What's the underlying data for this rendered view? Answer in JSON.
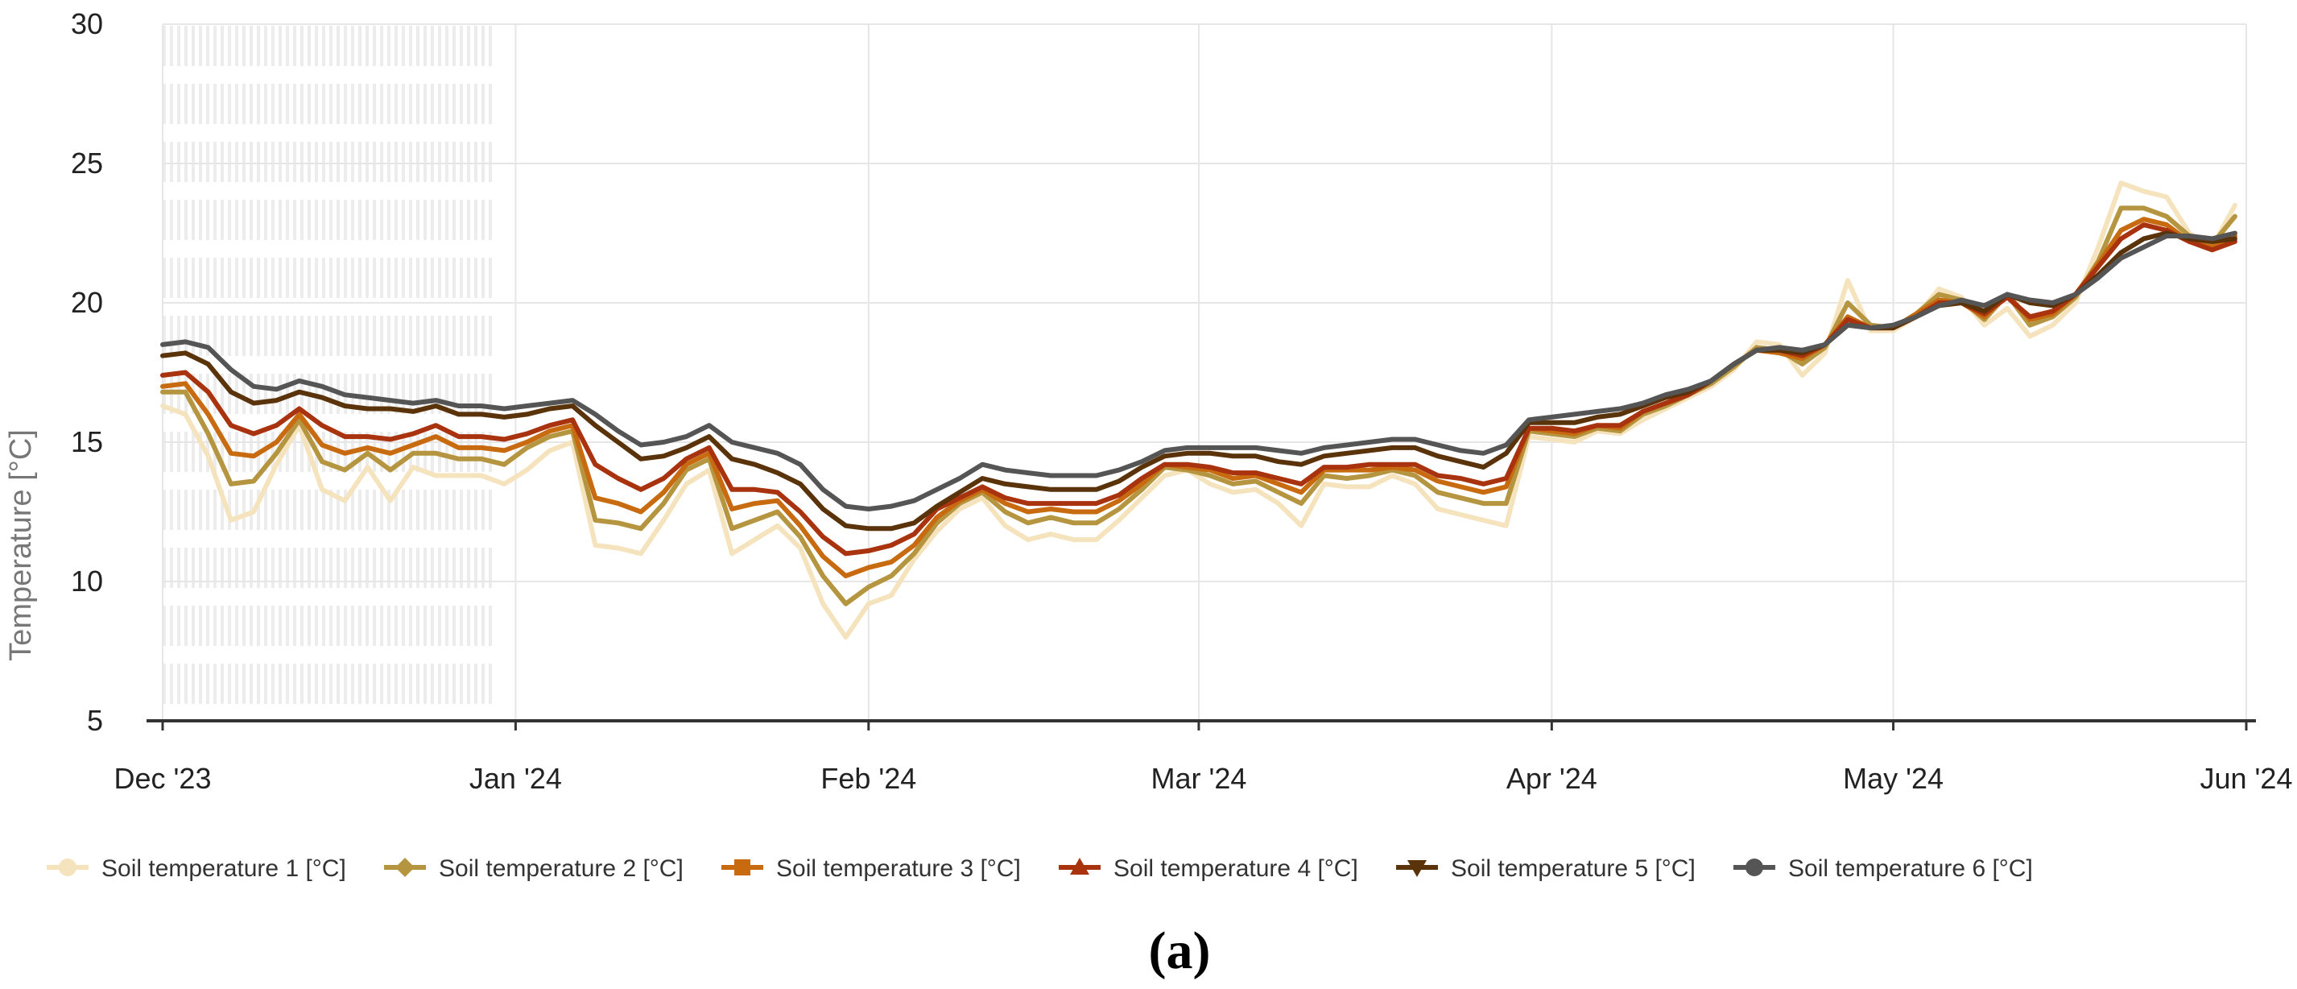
{
  "chart_data": {
    "type": "line",
    "title": "",
    "caption": "(a)",
    "xlabel": "",
    "ylabel": "Temperature [°C]",
    "ylim": [
      5,
      30
    ],
    "yticks": [
      5,
      10,
      15,
      20,
      25,
      30
    ],
    "x_domain_days": [
      0,
      183
    ],
    "xticks": [
      {
        "label": "Dec '23",
        "day": 0
      },
      {
        "label": "Jan '24",
        "day": 31
      },
      {
        "label": "Feb '24",
        "day": 62
      },
      {
        "label": "Mar '24",
        "day": 91
      },
      {
        "label": "Apr '24",
        "day": 122
      },
      {
        "label": "May '24",
        "day": 152
      },
      {
        "label": "Jun '24",
        "day": 183
      }
    ],
    "grid": true,
    "missing_data_band_days": [
      0,
      29
    ],
    "legend_position": "bottom",
    "x_days": [
      0,
      2,
      4,
      6,
      8,
      10,
      12,
      14,
      16,
      18,
      20,
      22,
      24,
      26,
      28,
      30,
      32,
      34,
      36,
      38,
      40,
      42,
      44,
      46,
      48,
      50,
      52,
      54,
      56,
      58,
      60,
      62,
      64,
      66,
      68,
      70,
      72,
      74,
      76,
      78,
      80,
      82,
      84,
      86,
      88,
      90,
      92,
      94,
      96,
      98,
      100,
      102,
      104,
      106,
      108,
      110,
      112,
      114,
      116,
      118,
      120,
      122,
      124,
      126,
      128,
      130,
      132,
      134,
      136,
      138,
      140,
      142,
      144,
      146,
      148,
      150,
      152,
      154,
      156,
      158,
      160,
      162,
      164,
      166,
      168,
      170,
      172,
      174,
      176,
      178,
      180,
      182
    ],
    "series": [
      {
        "name": "Soil temperature 1 [°C]",
        "color": "#f5e3be",
        "marker": "circle",
        "values": [
          16.3,
          16.0,
          14.5,
          12.2,
          12.5,
          14.2,
          15.6,
          13.3,
          12.9,
          14.1,
          12.9,
          14.1,
          13.8,
          13.8,
          13.8,
          13.5,
          14.0,
          14.7,
          15.0,
          11.3,
          11.2,
          11.0,
          12.2,
          13.5,
          14.0,
          11.0,
          11.5,
          12.0,
          11.2,
          9.2,
          8.0,
          9.2,
          9.5,
          10.8,
          11.8,
          12.6,
          13.0,
          12.0,
          11.5,
          11.7,
          11.5,
          11.5,
          12.2,
          13.0,
          13.8,
          14.0,
          13.5,
          13.2,
          13.3,
          12.8,
          12.0,
          13.5,
          13.4,
          13.4,
          13.8,
          13.5,
          12.6,
          12.4,
          12.2,
          12.0,
          15.2,
          15.1,
          15.0,
          15.4,
          15.3,
          15.8,
          16.2,
          16.6,
          17.0,
          17.6,
          18.6,
          18.5,
          17.4,
          18.2,
          20.8,
          19.0,
          19.0,
          19.5,
          20.5,
          20.2,
          19.2,
          19.8,
          18.8,
          19.2,
          20.0,
          22.0,
          24.3,
          24.0,
          23.8,
          22.5,
          22.0,
          23.5
        ]
      },
      {
        "name": "Soil temperature 2 [°C]",
        "color": "#b5953f",
        "marker": "diamond",
        "values": [
          16.8,
          16.8,
          15.3,
          13.5,
          13.6,
          14.6,
          15.8,
          14.3,
          14.0,
          14.6,
          14.0,
          14.6,
          14.6,
          14.4,
          14.4,
          14.2,
          14.8,
          15.2,
          15.4,
          12.2,
          12.1,
          11.9,
          12.8,
          14.0,
          14.4,
          11.9,
          12.2,
          12.5,
          11.6,
          10.2,
          9.2,
          9.8,
          10.2,
          11.0,
          12.1,
          12.8,
          13.2,
          12.5,
          12.1,
          12.3,
          12.1,
          12.1,
          12.6,
          13.3,
          14.1,
          14.0,
          13.8,
          13.5,
          13.6,
          13.2,
          12.8,
          13.8,
          13.7,
          13.8,
          14.0,
          13.8,
          13.2,
          13.0,
          12.8,
          12.8,
          15.4,
          15.3,
          15.2,
          15.5,
          15.4,
          16.0,
          16.3,
          16.7,
          17.1,
          17.7,
          18.4,
          18.3,
          17.8,
          18.4,
          20.0,
          19.2,
          19.1,
          19.6,
          20.3,
          20.1,
          19.4,
          20.3,
          19.2,
          19.5,
          20.2,
          21.5,
          23.4,
          23.4,
          23.1,
          22.4,
          22.1,
          23.1
        ]
      },
      {
        "name": "Soil temperature 3 [°C]",
        "color": "#c76a10",
        "marker": "square",
        "values": [
          17.0,
          17.1,
          16.0,
          14.6,
          14.5,
          15.0,
          16.0,
          14.9,
          14.6,
          14.8,
          14.6,
          14.9,
          15.2,
          14.8,
          14.8,
          14.7,
          15.0,
          15.4,
          15.6,
          13.0,
          12.8,
          12.5,
          13.2,
          14.2,
          14.6,
          12.6,
          12.8,
          12.9,
          12.0,
          10.9,
          10.2,
          10.5,
          10.7,
          11.3,
          12.3,
          12.9,
          13.3,
          12.8,
          12.5,
          12.6,
          12.5,
          12.5,
          12.9,
          13.5,
          14.2,
          14.1,
          14.0,
          13.7,
          13.8,
          13.5,
          13.2,
          14.0,
          14.0,
          14.0,
          14.1,
          14.0,
          13.6,
          13.4,
          13.2,
          13.4,
          15.5,
          15.4,
          15.3,
          15.6,
          15.5,
          16.1,
          16.4,
          16.7,
          17.2,
          17.8,
          18.3,
          18.2,
          18.0,
          18.5,
          19.5,
          19.1,
          19.1,
          19.6,
          20.1,
          20.0,
          19.5,
          20.3,
          19.4,
          19.6,
          20.3,
          21.4,
          22.6,
          23.0,
          22.8,
          22.2,
          22.0,
          22.4
        ]
      },
      {
        "name": "Soil temperature 4 [°C]",
        "color": "#a8330e",
        "marker": "triangle-up",
        "values": [
          17.4,
          17.5,
          16.8,
          15.6,
          15.3,
          15.6,
          16.2,
          15.6,
          15.2,
          15.2,
          15.1,
          15.3,
          15.6,
          15.2,
          15.2,
          15.1,
          15.3,
          15.6,
          15.8,
          14.2,
          13.7,
          13.3,
          13.7,
          14.4,
          14.8,
          13.3,
          13.3,
          13.2,
          12.5,
          11.6,
          11.0,
          11.1,
          11.3,
          11.7,
          12.6,
          13.0,
          13.4,
          13.0,
          12.8,
          12.8,
          12.8,
          12.8,
          13.1,
          13.7,
          14.2,
          14.2,
          14.1,
          13.9,
          13.9,
          13.7,
          13.5,
          14.1,
          14.1,
          14.2,
          14.2,
          14.2,
          13.8,
          13.7,
          13.5,
          13.7,
          15.5,
          15.5,
          15.4,
          15.6,
          15.6,
          16.1,
          16.4,
          16.7,
          17.2,
          17.8,
          18.3,
          18.3,
          18.1,
          18.5,
          19.4,
          19.1,
          19.1,
          19.5,
          20.0,
          20.0,
          19.6,
          20.2,
          19.5,
          19.7,
          20.3,
          21.3,
          22.3,
          22.8,
          22.6,
          22.2,
          21.9,
          22.2
        ]
      },
      {
        "name": "Soil temperature 5 [°C]",
        "color": "#5a330a",
        "marker": "triangle-down",
        "values": [
          18.1,
          18.2,
          17.8,
          16.8,
          16.4,
          16.5,
          16.8,
          16.6,
          16.3,
          16.2,
          16.2,
          16.1,
          16.3,
          16.0,
          16.0,
          15.9,
          16.0,
          16.2,
          16.3,
          15.6,
          15.0,
          14.4,
          14.5,
          14.8,
          15.2,
          14.4,
          14.2,
          13.9,
          13.5,
          12.6,
          12.0,
          11.9,
          11.9,
          12.1,
          12.7,
          13.2,
          13.7,
          13.5,
          13.4,
          13.3,
          13.3,
          13.3,
          13.6,
          14.1,
          14.5,
          14.6,
          14.6,
          14.5,
          14.5,
          14.3,
          14.2,
          14.5,
          14.6,
          14.7,
          14.8,
          14.8,
          14.5,
          14.3,
          14.1,
          14.6,
          15.7,
          15.7,
          15.7,
          15.9,
          16.0,
          16.3,
          16.6,
          16.8,
          17.2,
          17.8,
          18.3,
          18.3,
          18.2,
          18.5,
          19.2,
          19.1,
          19.1,
          19.5,
          19.9,
          20.0,
          19.7,
          20.3,
          20.0,
          19.9,
          20.3,
          21.0,
          21.8,
          22.3,
          22.5,
          22.3,
          22.2,
          22.3
        ]
      },
      {
        "name": "Soil temperature 6 [°C]",
        "color": "#555555",
        "marker": "circle",
        "values": [
          18.5,
          18.6,
          18.4,
          17.6,
          17.0,
          16.9,
          17.2,
          17.0,
          16.7,
          16.6,
          16.5,
          16.4,
          16.5,
          16.3,
          16.3,
          16.2,
          16.3,
          16.4,
          16.5,
          16.0,
          15.4,
          14.9,
          15.0,
          15.2,
          15.6,
          15.0,
          14.8,
          14.6,
          14.2,
          13.3,
          12.7,
          12.6,
          12.7,
          12.9,
          13.3,
          13.7,
          14.2,
          14.0,
          13.9,
          13.8,
          13.8,
          13.8,
          14.0,
          14.3,
          14.7,
          14.8,
          14.8,
          14.8,
          14.8,
          14.7,
          14.6,
          14.8,
          14.9,
          15.0,
          15.1,
          15.1,
          14.9,
          14.7,
          14.6,
          14.9,
          15.8,
          15.9,
          16.0,
          16.1,
          16.2,
          16.4,
          16.7,
          16.9,
          17.2,
          17.8,
          18.3,
          18.4,
          18.3,
          18.5,
          19.2,
          19.1,
          19.2,
          19.5,
          19.9,
          20.1,
          19.9,
          20.3,
          20.1,
          20.0,
          20.3,
          20.9,
          21.6,
          22.0,
          22.4,
          22.4,
          22.3,
          22.5
        ]
      }
    ]
  }
}
